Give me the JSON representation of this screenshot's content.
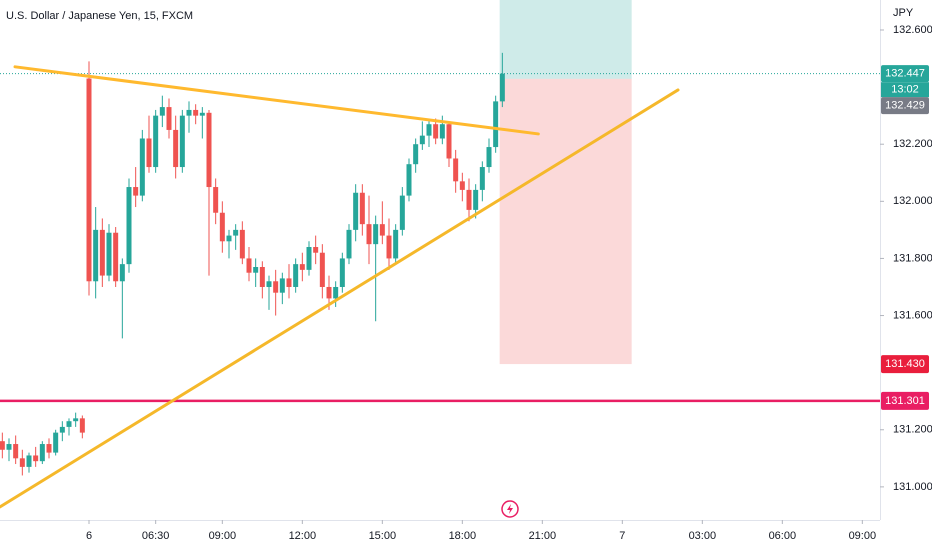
{
  "chart_data": {
    "type": "candlestick",
    "title": "U.S. Dollar / Japanese Yen, 15, FXCM",
    "currency": "JPY",
    "x": [
      -13,
      -12,
      -11,
      -10,
      -9,
      -8,
      -7,
      -6,
      -5,
      -4,
      -3,
      -2,
      -1,
      0,
      1,
      2,
      3,
      4,
      5,
      6,
      7,
      8,
      9,
      10,
      11,
      12,
      13,
      14,
      15,
      16,
      17,
      18,
      19,
      20,
      21,
      22,
      23,
      24,
      25,
      26,
      27,
      28,
      29,
      30,
      31,
      32,
      33,
      34,
      35,
      36,
      37,
      38,
      39,
      40,
      41,
      42,
      43,
      44,
      45,
      46,
      47,
      48,
      49,
      50,
      51,
      52,
      53,
      54,
      55,
      56,
      57,
      58,
      59,
      60,
      61,
      62
    ],
    "open": [
      131.16,
      131.13,
      131.15,
      131.1,
      131.07,
      131.11,
      131.09,
      131.15,
      131.12,
      131.19,
      131.21,
      131.23,
      131.24,
      132.43,
      131.72,
      131.9,
      131.74,
      131.89,
      131.72,
      131.78,
      132.05,
      132.02,
      132.22,
      132.12,
      132.3,
      132.33,
      132.25,
      132.12,
      132.3,
      132.32,
      132.3,
      132.31,
      132.05,
      131.96,
      131.86,
      131.88,
      131.9,
      131.8,
      131.75,
      131.77,
      131.7,
      131.72,
      131.68,
      131.73,
      131.7,
      131.78,
      131.76,
      131.84,
      131.82,
      131.7,
      131.66,
      131.7,
      131.8,
      131.9,
      132.03,
      131.92,
      131.85,
      131.92,
      131.88,
      131.8,
      131.9,
      132.02,
      132.13,
      132.2,
      132.23,
      132.27,
      132.22,
      132.27,
      132.15,
      132.07,
      132.04,
      131.97,
      132.04,
      132.12,
      132.19,
      132.35
    ],
    "high": [
      131.19,
      131.17,
      131.18,
      131.13,
      131.12,
      131.14,
      131.16,
      131.17,
      131.2,
      131.23,
      131.24,
      131.26,
      131.25,
      132.49,
      131.98,
      131.94,
      131.92,
      131.91,
      131.8,
      132.08,
      132.12,
      132.25,
      132.3,
      132.32,
      132.37,
      132.36,
      132.3,
      132.32,
      132.35,
      132.34,
      132.33,
      132.32,
      132.08,
      132.0,
      131.9,
      131.92,
      131.93,
      131.84,
      131.8,
      131.79,
      131.74,
      131.76,
      131.75,
      131.78,
      131.8,
      131.82,
      131.86,
      131.88,
      131.85,
      131.74,
      131.72,
      131.82,
      131.92,
      132.06,
      132.06,
      132.02,
      131.95,
      132.0,
      131.94,
      131.92,
      132.05,
      132.15,
      132.22,
      132.28,
      132.29,
      132.29,
      132.3,
      132.28,
      132.18,
      132.1,
      132.08,
      132.06,
      132.14,
      132.22,
      132.37,
      132.52
    ],
    "low": [
      131.1,
      131.09,
      131.08,
      131.04,
      131.05,
      131.07,
      131.08,
      131.1,
      131.11,
      131.16,
      131.18,
      131.21,
      131.17,
      131.67,
      131.66,
      131.7,
      131.72,
      131.7,
      131.52,
      131.75,
      131.98,
      132.0,
      132.1,
      132.1,
      132.26,
      132.22,
      132.08,
      132.1,
      132.24,
      132.27,
      132.22,
      131.74,
      131.92,
      131.82,
      131.8,
      131.83,
      131.78,
      131.72,
      131.7,
      131.66,
      131.62,
      131.6,
      131.64,
      131.66,
      131.68,
      131.72,
      131.74,
      131.78,
      131.66,
      131.62,
      131.63,
      131.68,
      131.78,
      131.86,
      131.88,
      131.78,
      131.58,
      131.85,
      131.76,
      131.78,
      131.88,
      132.0,
      132.1,
      132.18,
      132.19,
      132.2,
      132.2,
      132.12,
      132.03,
      132.0,
      131.93,
      131.94,
      132.0,
      132.1,
      132.17,
      132.33
    ],
    "close": [
      131.13,
      131.15,
      131.1,
      131.07,
      131.11,
      131.09,
      131.15,
      131.12,
      131.19,
      131.21,
      131.23,
      131.24,
      131.19,
      131.72,
      131.9,
      131.74,
      131.89,
      131.72,
      131.78,
      132.05,
      132.02,
      132.22,
      132.12,
      132.3,
      132.33,
      132.25,
      132.12,
      132.3,
      132.32,
      132.3,
      132.31,
      132.05,
      131.96,
      131.86,
      131.88,
      131.9,
      131.8,
      131.75,
      131.77,
      131.7,
      131.72,
      131.68,
      131.73,
      131.7,
      131.78,
      131.76,
      131.84,
      131.82,
      131.7,
      131.66,
      131.7,
      131.8,
      131.9,
      132.03,
      131.92,
      131.85,
      131.92,
      131.88,
      131.8,
      131.9,
      132.02,
      132.13,
      132.2,
      132.23,
      132.27,
      132.22,
      132.27,
      132.15,
      132.07,
      132.04,
      131.97,
      132.04,
      132.12,
      132.19,
      132.35,
      132.447
    ],
    "up_color": "#26a69a",
    "down_color": "#ef5350",
    "xlim": [
      -13.35,
      118.65
    ],
    "ylim": [
      130.884,
      132.705
    ],
    "yticks": [
      {
        "value": 131.0,
        "label": "131.000"
      },
      {
        "value": 131.2,
        "label": "131.200"
      },
      {
        "value": 131.6,
        "label": "131.600"
      },
      {
        "value": 131.8,
        "label": "131.800"
      },
      {
        "value": 132.0,
        "label": "132.000"
      },
      {
        "value": 132.2,
        "label": "132.200"
      },
      {
        "value": 132.6,
        "label": "132.600"
      }
    ],
    "xticks": [
      {
        "value": 0,
        "label": "6"
      },
      {
        "value": 10,
        "label": "06:30"
      },
      {
        "value": 20,
        "label": "09:00"
      },
      {
        "value": 32,
        "label": "12:00"
      },
      {
        "value": 44,
        "label": "15:00"
      },
      {
        "value": 56,
        "label": "18:00"
      },
      {
        "value": 68,
        "label": "21:00"
      },
      {
        "value": 80,
        "label": "7"
      },
      {
        "value": 92,
        "label": "03:00"
      },
      {
        "value": 104,
        "label": "06:00"
      },
      {
        "value": 116,
        "label": "09:00"
      }
    ],
    "last_price": {
      "value": 132.447,
      "label": "132.447",
      "countdown": "13:02",
      "color": "#26a69a"
    },
    "position": {
      "x_range": [
        61.6,
        81.4
      ],
      "entry": {
        "value": 132.429,
        "label": "132.429"
      },
      "stop": {
        "value": 131.43,
        "label": "131.430"
      },
      "profit_color": "#26a69a",
      "loss_color": "#ef5350"
    },
    "hline": {
      "value": 131.301,
      "label": "131.301",
      "color": "#e91e63"
    },
    "trendlines": [
      {
        "points": [
          [
            -11.1,
            132.471
          ],
          [
            67.4,
            132.236
          ]
        ],
        "color": "#ffb92e"
      },
      {
        "points": [
          [
            -13.35,
            130.93
          ],
          [
            88.35,
            132.39
          ]
        ],
        "color": "#f5b82a"
      }
    ]
  }
}
